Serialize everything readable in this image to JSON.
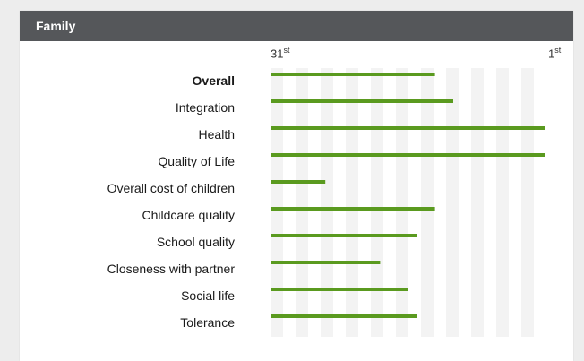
{
  "header": {
    "title": "Family"
  },
  "axis": {
    "left_tick": {
      "num": "31",
      "suffix": "st"
    },
    "right_tick": {
      "num": "1",
      "suffix": "st"
    }
  },
  "colors": {
    "bar": "#5a9a1f",
    "header_bg": "#55575a",
    "stripe": "#f3f3f3"
  },
  "chart_data": {
    "type": "bar",
    "orientation": "horizontal",
    "title": "",
    "xlabel": "",
    "ylabel": "",
    "x_axis": "rank",
    "xlim": [
      31,
      1
    ],
    "x_tick_labels": [
      "31st",
      "1st"
    ],
    "categories": [
      "Overall",
      "Integration",
      "Health",
      "Quality of Life",
      "Overall cost of children",
      "Childcare quality",
      "School quality",
      "Closeness with partner",
      "Social life",
      "Tolerance"
    ],
    "values": [
      13,
      11,
      1,
      1,
      25,
      13,
      15,
      19,
      16,
      15
    ],
    "grid": true,
    "legend": "none"
  }
}
